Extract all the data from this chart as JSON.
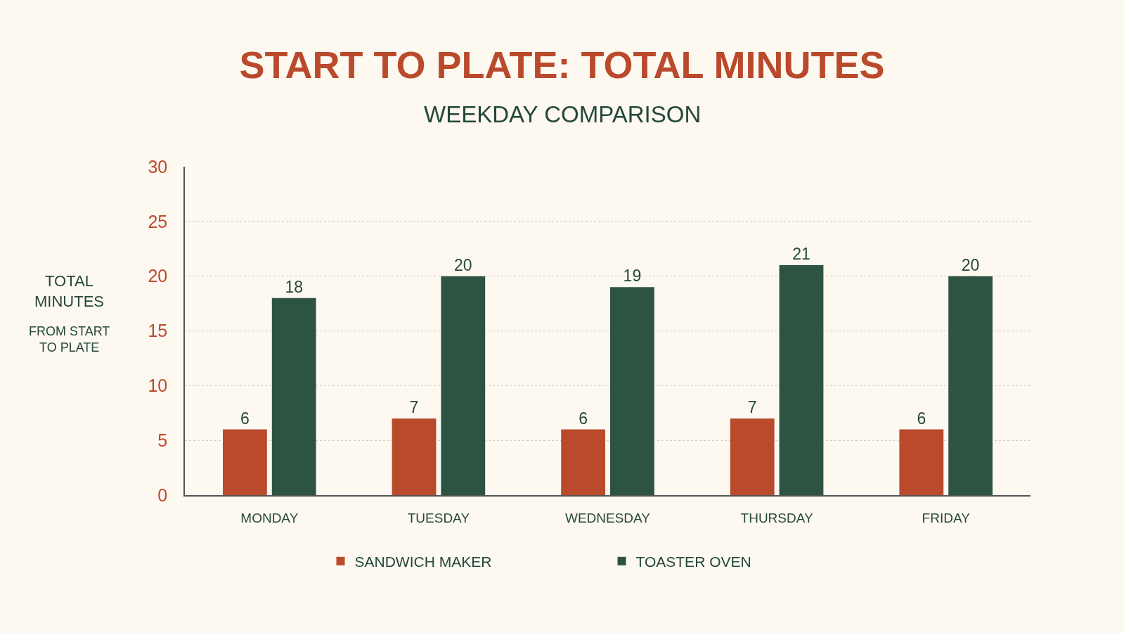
{
  "chart_data": {
    "type": "bar",
    "title": "START TO PLATE: TOTAL MINUTES",
    "subtitle": "WEEKDAY COMPARISON",
    "ylabel": "TOTAL MINUTES",
    "annotations": [
      "FROM START TO PLATE"
    ],
    "categories": [
      "MONDAY",
      "TUESDAY",
      "WEDNESDAY",
      "THURSDAY",
      "FRIDAY"
    ],
    "series": [
      {
        "name": "SANDWICH MAKER",
        "color": "#b94a2c",
        "values": [
          6,
          7,
          6,
          7,
          6
        ]
      },
      {
        "name": "TOASTER OVEN",
        "color": "#2d5443",
        "values": [
          18,
          20,
          19,
          21,
          20
        ]
      }
    ],
    "ylim": [
      0,
      30
    ],
    "yticks": [
      0,
      5,
      10,
      15,
      20,
      25,
      30
    ],
    "grid": "y",
    "legend": "bottom",
    "data_labels": true
  }
}
